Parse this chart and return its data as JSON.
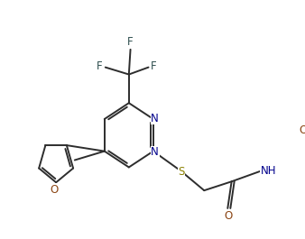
{
  "bg_color": "#ffffff",
  "bond_color": "#2d2d2d",
  "atom_colors": {
    "N": "#00008B",
    "O": "#8B4513",
    "S": "#8B8000",
    "F": "#2F4F4F",
    "C": "#2d2d2d"
  },
  "figsize": [
    3.38,
    2.65
  ],
  "dpi": 100,
  "lw": 1.4,
  "fontsize": 8.5
}
